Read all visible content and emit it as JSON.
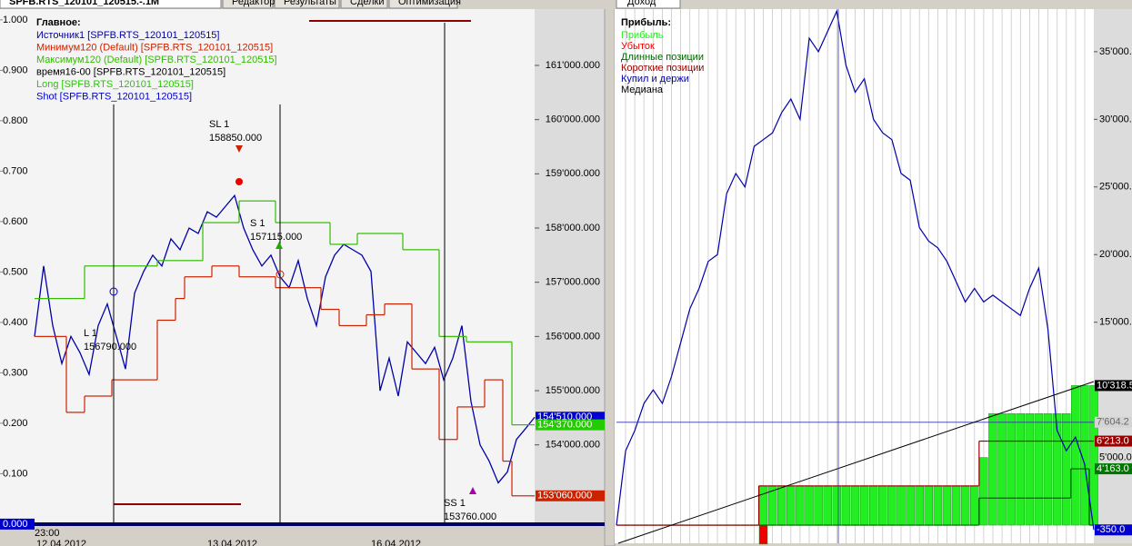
{
  "tabs": [
    "SPFB.RTS_120101_120515.-.1M",
    "Редактор",
    "Результаты",
    "Сделки",
    "Оптимизация"
  ],
  "right_tab": "Доход",
  "left_chart": {
    "type": "line",
    "legend_title": "Главное:",
    "ylim": [
      -0.002,
      1.007
    ],
    "yticks": [
      {
        "value": 0,
        "label": "0.000"
      },
      {
        "value": 0.1,
        "label": "0.100"
      },
      {
        "value": 0.2,
        "label": "0.200"
      },
      {
        "value": 0.3,
        "label": "0.300"
      },
      {
        "value": 0.4,
        "label": "0.400"
      },
      {
        "value": 0.5,
        "label": "0.500"
      },
      {
        "value": 0.6,
        "label": "0.600"
      },
      {
        "value": 0.7,
        "label": "0.700"
      },
      {
        "value": 0.8,
        "label": "0.800"
      },
      {
        "value": 0.9,
        "label": "0.900"
      },
      {
        "value": 1,
        "label": "1.000"
      }
    ],
    "price_ylim": [
      152520,
      161905
    ],
    "price_yticks": [
      {
        "value": 154000,
        "label": "154'000.000"
      },
      {
        "value": 155000,
        "label": "155'000.000"
      },
      {
        "value": 156000,
        "label": "156'000.000"
      },
      {
        "value": 157000,
        "label": "157'000.000"
      },
      {
        "value": 158000,
        "label": "158'000.000"
      },
      {
        "value": 159000,
        "label": "159'000.000"
      },
      {
        "value": 160000,
        "label": "160'000.000"
      },
      {
        "value": 161000,
        "label": "161'000.000"
      }
    ],
    "x_labels": [
      "23:00",
      "12.04.2012",
      "13.04.2012",
      "16.04.2012"
    ],
    "series": [
      {
        "name": "Источник1 [SPFB.RTS_120101_120515]",
        "color": "#0000aa",
        "style": "line",
        "values": [
          156000,
          157300,
          156200,
          155500,
          156000,
          155700,
          155300,
          156200,
          156600,
          156000,
          155400,
          156800,
          157200,
          157500,
          157300,
          157800,
          157600,
          158000,
          157900,
          158300,
          158200,
          158400,
          158600,
          158000,
          157600,
          157300,
          157500,
          157100,
          156900,
          157400,
          156700,
          156200,
          157100,
          157500,
          157700,
          157600,
          157500,
          157200,
          155000,
          155600,
          154900,
          155900,
          155700,
          155500,
          155800,
          155200,
          155600,
          156200,
          154800,
          154000,
          153700,
          153300,
          153500,
          154100,
          154300,
          154510
        ]
      },
      {
        "name": "Минимум120 (Default) [SPFB.RTS_120101_120515]",
        "color": "#cc2200",
        "style": "step",
        "values": [
          156000,
          156000,
          156000,
          156000,
          154600,
          154600,
          154900,
          154900,
          154900,
          155200,
          155200,
          155200,
          155200,
          155200,
          156300,
          156300,
          156700,
          157100,
          157100,
          157100,
          157300,
          157300,
          157300,
          157100,
          157100,
          157100,
          157100,
          156900,
          156900,
          156900,
          156900,
          156900,
          156500,
          156500,
          156200,
          156200,
          156200,
          156400,
          156400,
          156600,
          156600,
          156600,
          155400,
          155400,
          155400,
          154100,
          154100,
          154700,
          154700,
          154700,
          155200,
          155200,
          153700,
          153060,
          153060,
          153060
        ]
      },
      {
        "name": "Максимум120 (Default) [SPFB.RTS_120101_120515]",
        "color": "#33bb00",
        "style": "step",
        "values": [
          156700,
          156700,
          156700,
          156700,
          156700,
          156700,
          157300,
          157300,
          157300,
          157300,
          157300,
          157300,
          157300,
          157300,
          157400,
          157400,
          157400,
          157400,
          157400,
          158100,
          158100,
          158100,
          158100,
          158500,
          158500,
          158500,
          158500,
          158100,
          158100,
          158100,
          158100,
          158100,
          158100,
          157700,
          157700,
          157700,
          157900,
          157900,
          157900,
          157900,
          157900,
          157600,
          157600,
          157600,
          157600,
          156000,
          156000,
          156000,
          155900,
          155900,
          155900,
          155900,
          155900,
          154370,
          154370,
          154370
        ]
      },
      {
        "name": "время16-00 [SPFB.RTS_120101_120515]",
        "color": "#000000"
      },
      {
        "name": "Long [SPFB.RTS_120101_120515]",
        "color": "#22cc00"
      },
      {
        "name": "Shot [SPFB.RTS_120101_120515]",
        "color": "#0000cc"
      }
    ],
    "price_labels": [
      {
        "value": 154510,
        "label": "154'510.000",
        "color": "#0000cc"
      },
      {
        "value": 154370,
        "label": "154'370.000",
        "color": "#22cc00"
      },
      {
        "value": 153060,
        "label": "153'060.000",
        "color": "#cc2200"
      }
    ],
    "annotations": [
      {
        "label": "SL 1",
        "price": "158850.000"
      },
      {
        "label": "S 1",
        "price": "157115.000"
      },
      {
        "label": "L 1",
        "price": "156790.000"
      },
      {
        "label": "SS 1",
        "price": "153760.000"
      }
    ]
  },
  "right_chart": {
    "type": "line",
    "legend_title": "Прибыль:",
    "ylim": [
      -1340,
      38150
    ],
    "yticks": [
      {
        "value": 5000,
        "label": "5'000.0"
      },
      {
        "value": 15000,
        "label": "15'000.0"
      },
      {
        "value": 20000,
        "label": "20'000.0"
      },
      {
        "value": 25000,
        "label": "25'000.0"
      },
      {
        "value": 30000,
        "label": "30'000.0"
      },
      {
        "value": 35000,
        "label": "35'000.0"
      }
    ],
    "series": [
      {
        "name": "Прибыль",
        "color": "#22ee22",
        "style": "bar",
        "values": [
          0,
          0,
          0,
          0,
          0,
          0,
          0,
          0,
          0,
          0,
          0,
          0,
          0,
          0,
          0,
          0,
          2900,
          2900,
          2900,
          2900,
          2900,
          2900,
          2900,
          2900,
          2900,
          2900,
          2900,
          2900,
          2900,
          2900,
          2900,
          2900,
          2900,
          2900,
          2900,
          2900,
          2900,
          2900,
          2900,
          2900,
          5000,
          8250,
          8250,
          8250,
          8250,
          8250,
          8250,
          8250,
          8250,
          8250,
          10318.5,
          10318.5,
          10318.5
        ]
      },
      {
        "name": "Убыток",
        "color": "#ee0000",
        "style": "bar",
        "values": [
          0,
          0,
          0,
          0,
          0,
          0,
          0,
          0,
          0,
          0,
          0,
          0,
          0,
          0,
          0,
          0,
          -1400,
          0,
          0,
          0,
          0,
          0,
          0,
          0,
          0,
          0,
          0,
          0,
          0,
          0,
          0,
          0,
          0,
          0,
          0,
          0,
          0,
          0,
          0,
          0,
          0,
          0,
          0,
          0,
          0,
          0,
          0,
          0,
          0,
          0,
          0,
          0,
          0
        ]
      },
      {
        "name": "Длинные позиции",
        "color": "#006600",
        "style": "step",
        "values": [
          0,
          0,
          0,
          0,
          0,
          0,
          0,
          0,
          0,
          0,
          0,
          0,
          0,
          0,
          0,
          0,
          0,
          0,
          0,
          0,
          0,
          0,
          0,
          0,
          0,
          0,
          0,
          0,
          0,
          0,
          0,
          0,
          0,
          0,
          0,
          0,
          0,
          0,
          0,
          0,
          2000,
          2000,
          2000,
          2000,
          2000,
          2000,
          2000,
          2000,
          2000,
          2000,
          4163,
          4163,
          0
        ]
      },
      {
        "name": "Короткие позиции",
        "color": "#990000",
        "style": "step",
        "values": [
          0,
          0,
          0,
          0,
          0,
          0,
          0,
          0,
          0,
          0,
          0,
          0,
          0,
          0,
          0,
          0,
          2900,
          2900,
          2900,
          2900,
          2900,
          2900,
          2900,
          2900,
          2900,
          2900,
          2900,
          2900,
          2900,
          2900,
          2900,
          2900,
          2900,
          2900,
          2900,
          2900,
          2900,
          2900,
          2900,
          2900,
          6213,
          6213,
          6213,
          6213,
          6213,
          6213,
          6213,
          6213,
          6213,
          6213,
          6213,
          6213,
          6213
        ]
      },
      {
        "name": "Купил и держи",
        "color": "#0000aa",
        "style": "line",
        "values": [
          0,
          5500,
          7000,
          9000,
          10000,
          9000,
          11000,
          13500,
          16000,
          17500,
          19500,
          20000,
          24500,
          26000,
          25000,
          28000,
          28500,
          29000,
          30500,
          31500,
          30000,
          36000,
          35000,
          36500,
          38000,
          34000,
          32000,
          33000,
          30000,
          29000,
          28500,
          26000,
          25500,
          22000,
          21000,
          20500,
          19500,
          18000,
          16500,
          17500,
          16500,
          17000,
          16500,
          16000,
          15500,
          17500,
          19000,
          14500,
          7000,
          5500,
          6500,
          4500,
          -350
        ]
      },
      {
        "name": "Медиана",
        "color": "#000000"
      }
    ],
    "value_labels": [
      {
        "value": 10318.5,
        "label": "10'318.5",
        "color": "#000000",
        "text_color": "#ffffff"
      },
      {
        "value": 7604.2,
        "label": "7'604.2",
        "color": "#d4d4d4",
        "text_color": "#666666"
      },
      {
        "value": 6213,
        "label": "6'213.0",
        "color": "#990000",
        "text_color": "#ffffff"
      },
      {
        "value": 4163,
        "label": "4'163.0",
        "color": "#007700",
        "text_color": "#ffffff"
      },
      {
        "value": -350,
        "label": "-350.0",
        "color": "#0000cc",
        "text_color": "#ffffff"
      }
    ]
  }
}
